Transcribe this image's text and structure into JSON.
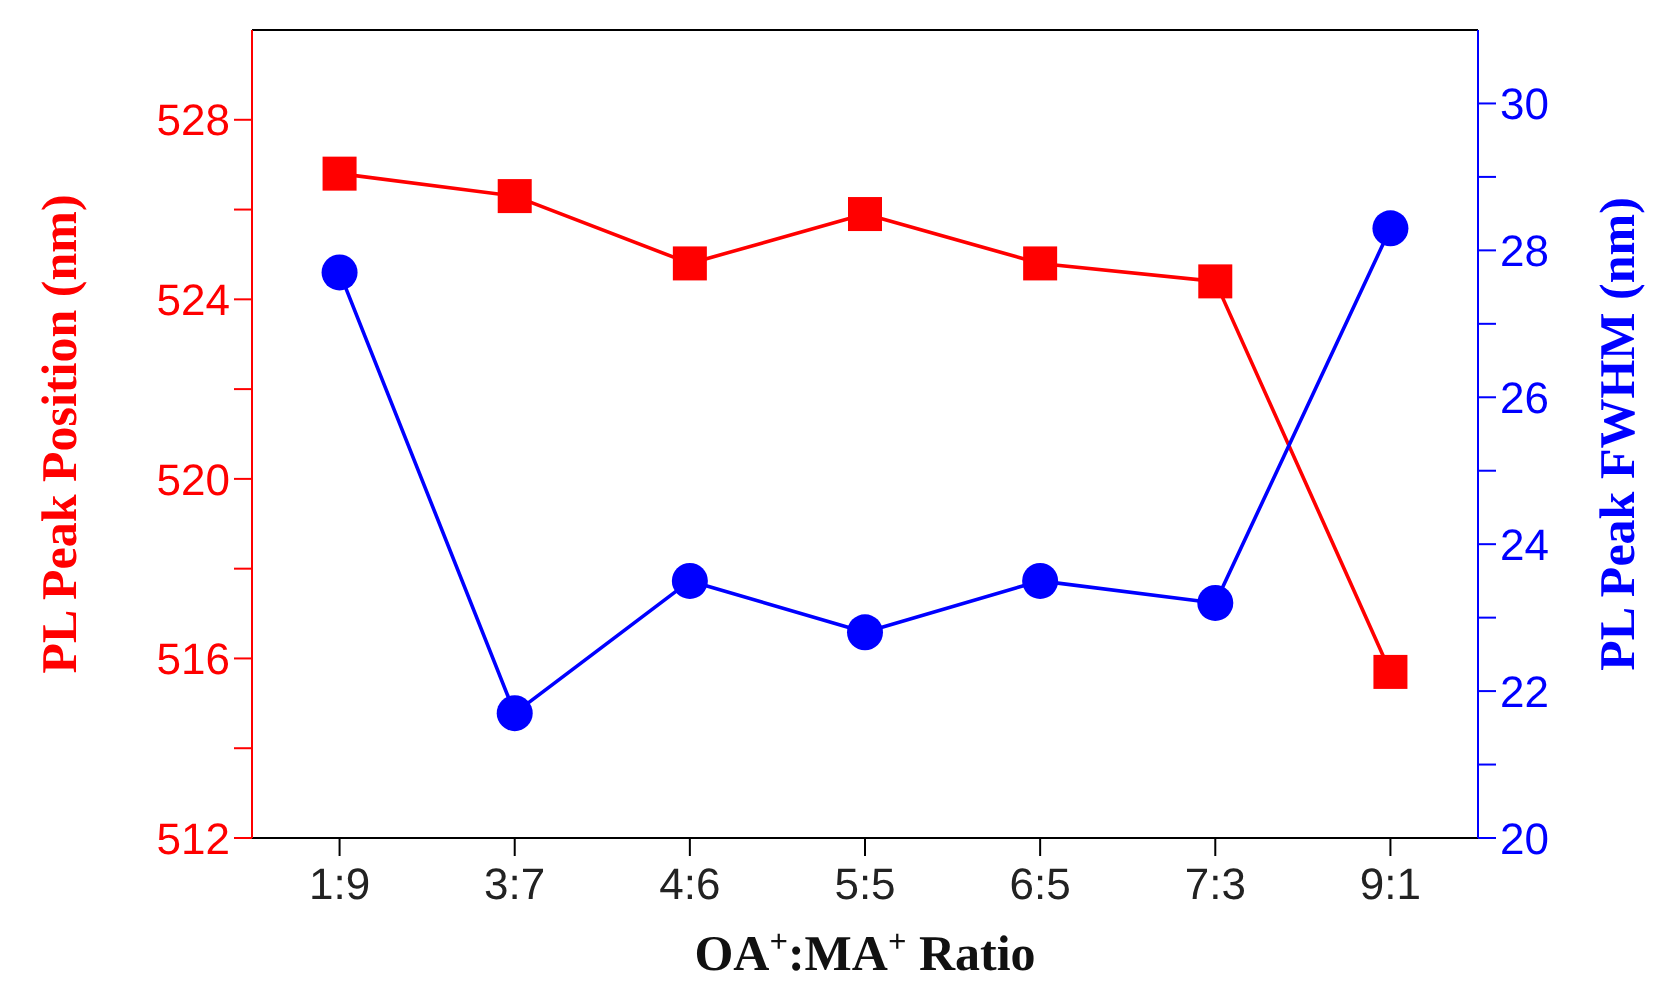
{
  "chart_data": {
    "type": "line",
    "xlabel": "OA$^{+}$:MA$^{+}$ Ratio",
    "ylabel": "PL Peak Position (nm)",
    "y2label": "PL Peak FWHM (nm)",
    "categories": [
      "1:9",
      "3:7",
      "4:6",
      "5:5",
      "6:5",
      "7:3",
      "9:1"
    ],
    "series": [
      {
        "color": "#ff0000",
        "marker": "square",
        "values": [
          526.8,
          526.3,
          524.8,
          525.9,
          524.8,
          524.4,
          515.7
        ]
      },
      {
        "color": "#0000ff",
        "marker": "circle",
        "axis": "y2",
        "values": [
          27.7,
          21.7,
          23.5,
          22.8,
          23.5,
          23.2,
          28.3
        ]
      }
    ],
    "ylim": [
      512,
      530
    ],
    "yticks": [
      512,
      {
        "value": 514,
        "label": null
      },
      516,
      {
        "value": 518,
        "label": null
      },
      520,
      {
        "value": 522,
        "label": null
      },
      524,
      {
        "value": 526,
        "label": null
      },
      528
    ],
    "y2lim": [
      20,
      31
    ],
    "y2ticks": [
      20,
      {
        "value": 21,
        "label": null
      },
      22,
      {
        "value": 23,
        "label": null
      },
      24,
      {
        "value": 25,
        "label": null
      },
      26,
      {
        "value": 27,
        "label": null
      },
      28,
      {
        "value": 29,
        "label": null
      },
      30
    ],
    "grid": false,
    "legend": false
  }
}
